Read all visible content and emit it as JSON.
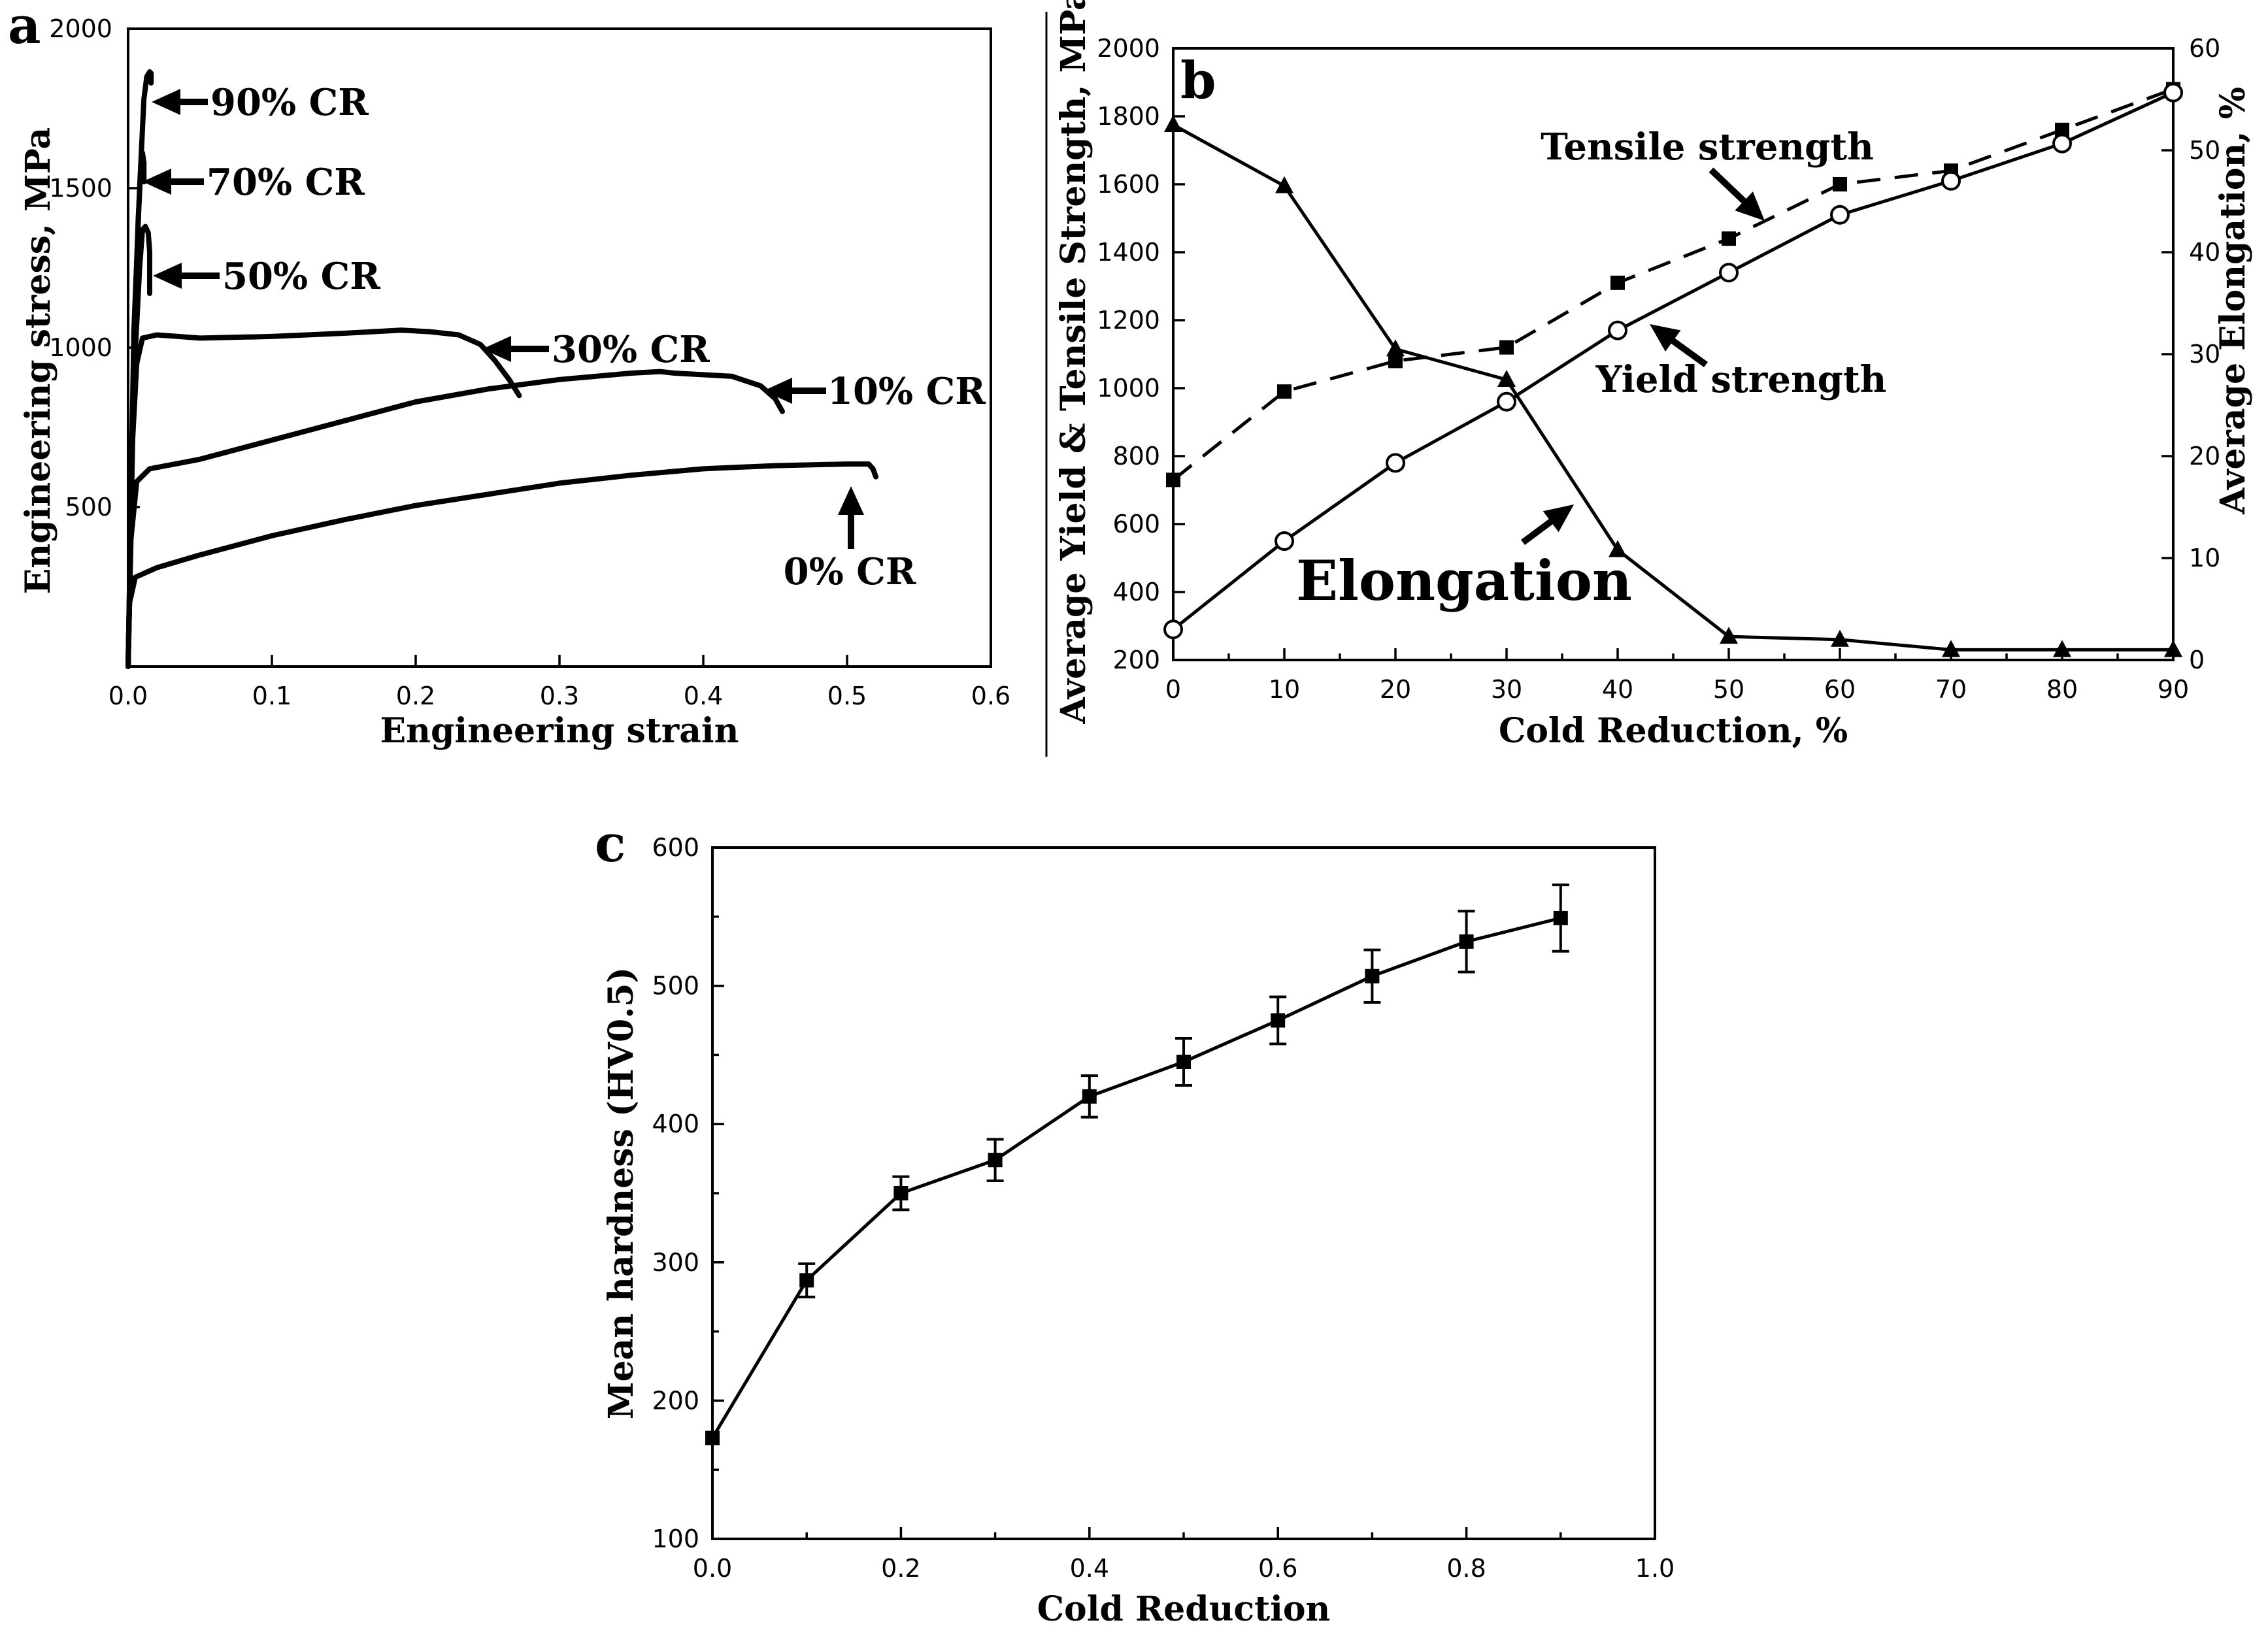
{
  "chart_data": [
    {
      "panel": "a",
      "type": "line",
      "xlabel": "Engineering strain",
      "ylabel": "Engineering stress, MPa",
      "xlim": [
        0,
        0.6
      ],
      "ylim": [
        0,
        2000
      ],
      "xticks": [
        0.0,
        0.1,
        0.2,
        0.3,
        0.4,
        0.5,
        0.6
      ],
      "xtick_labels": [
        "0.0",
        "0.1",
        "0.2",
        "0.3",
        "0.4",
        "0.5",
        "0.6"
      ],
      "yticks": [
        500,
        1000,
        1500,
        2000
      ],
      "ytick_labels": [
        "500",
        "1000",
        "1500",
        "2000"
      ],
      "series": [
        {
          "name": "0% CR",
          "x": [
            0,
            0.001,
            0.005,
            0.02,
            0.05,
            0.1,
            0.15,
            0.2,
            0.25,
            0.3,
            0.35,
            0.4,
            0.45,
            0.5,
            0.515,
            0.518,
            0.52
          ],
          "y": [
            0,
            200,
            280,
            310,
            350,
            410,
            460,
            505,
            540,
            575,
            600,
            620,
            630,
            635,
            635,
            620,
            595
          ]
        },
        {
          "name": "10% CR",
          "x": [
            0,
            0.002,
            0.006,
            0.015,
            0.05,
            0.1,
            0.15,
            0.2,
            0.25,
            0.3,
            0.35,
            0.37,
            0.38,
            0.42,
            0.44,
            0.45,
            0.455
          ],
          "y": [
            0,
            400,
            580,
            620,
            650,
            710,
            770,
            830,
            870,
            900,
            920,
            925,
            920,
            910,
            880,
            840,
            800
          ]
        },
        {
          "name": "30% CR",
          "x": [
            0,
            0.003,
            0.006,
            0.01,
            0.02,
            0.05,
            0.1,
            0.15,
            0.19,
            0.21,
            0.23,
            0.245,
            0.255,
            0.265,
            0.272
          ],
          "y": [
            0,
            700,
            950,
            1030,
            1040,
            1030,
            1035,
            1045,
            1055,
            1050,
            1040,
            1010,
            960,
            900,
            850
          ]
        },
        {
          "name": "50% CR",
          "x": [
            0,
            0.004,
            0.008,
            0.01,
            0.012,
            0.014,
            0.015,
            0.015
          ],
          "y": [
            0,
            900,
            1250,
            1370,
            1380,
            1360,
            1300,
            1170
          ]
        },
        {
          "name": "70% CR",
          "x": [
            0,
            0.004,
            0.007,
            0.009,
            0.01,
            0.011,
            0.011
          ],
          "y": [
            0,
            1000,
            1400,
            1580,
            1610,
            1580,
            1520
          ]
        },
        {
          "name": "90% CR",
          "x": [
            0,
            0.004,
            0.008,
            0.011,
            0.013,
            0.015,
            0.016,
            0.016
          ],
          "y": [
            0,
            1050,
            1500,
            1780,
            1850,
            1865,
            1860,
            1830
          ]
        }
      ],
      "annotations": [
        "90% CR",
        "70% CR",
        "50% CR",
        "30% CR",
        "10% CR",
        "0% CR"
      ]
    },
    {
      "panel": "b",
      "type": "line",
      "xlabel": "Cold Reduction, %",
      "ylabel": "Average Yield & Tensile Strength, MPa",
      "ylabel_right": "Average Elongation, %",
      "xlim": [
        0,
        90
      ],
      "ylim": [
        200,
        2000
      ],
      "ylim_right": [
        0,
        60
      ],
      "xticks": [
        0,
        10,
        20,
        30,
        40,
        50,
        60,
        70,
        80,
        90
      ],
      "xtick_labels": [
        "0",
        "10",
        "20",
        "30",
        "40",
        "50",
        "60",
        "70",
        "80",
        "90"
      ],
      "yticks": [
        200,
        400,
        600,
        800,
        1000,
        1200,
        1400,
        1600,
        1800,
        2000
      ],
      "ytick_labels": [
        "200",
        "400",
        "600",
        "800",
        "1000",
        "1200",
        "1400",
        "1600",
        "1800",
        "2000"
      ],
      "yticks_right": [
        0,
        10,
        20,
        30,
        40,
        50,
        60
      ],
      "ytick_labels_right": [
        "0",
        "10",
        "20",
        "30",
        "40",
        "50",
        "60"
      ],
      "categories": [
        0,
        10,
        20,
        30,
        40,
        50,
        60,
        70,
        80,
        90
      ],
      "series": [
        {
          "name": "Tensile strength",
          "axis": "left",
          "marker": "square",
          "style": "dashed",
          "values": [
            730,
            990,
            1080,
            1120,
            1310,
            1440,
            1600,
            1640,
            1760,
            1880
          ]
        },
        {
          "name": "Yield strength",
          "axis": "left",
          "marker": "circle-open",
          "style": "solid",
          "values": [
            290,
            550,
            780,
            960,
            1170,
            1340,
            1510,
            1610,
            1720,
            1870
          ]
        },
        {
          "name": "Elongation",
          "axis": "right",
          "marker": "triangle",
          "style": "solid",
          "values": [
            52.5,
            46.5,
            30.5,
            27.5,
            10.8,
            2.3,
            2.0,
            1.0,
            1.0,
            1.0
          ]
        }
      ],
      "annotations": [
        "Tensile strength",
        "Yield strength",
        "Elongation"
      ]
    },
    {
      "panel": "c",
      "type": "line",
      "xlabel": "Cold Reduction",
      "ylabel": "Mean hardness (HV0.5)",
      "xlim": [
        0.0,
        1.0
      ],
      "ylim": [
        100,
        600
      ],
      "xticks": [
        0.0,
        0.2,
        0.4,
        0.6,
        0.8,
        1.0
      ],
      "xtick_labels": [
        "0.0",
        "0.2",
        "0.4",
        "0.6",
        "0.8",
        "1.0"
      ],
      "yticks": [
        100,
        200,
        300,
        400,
        500,
        600
      ],
      "ytick_labels": [
        "100",
        "200",
        "300",
        "400",
        "500",
        "600"
      ],
      "series": [
        {
          "name": "Mean hardness",
          "marker": "square",
          "x": [
            0.0,
            0.1,
            0.2,
            0.3,
            0.4,
            0.5,
            0.6,
            0.7,
            0.8,
            0.9
          ],
          "y": [
            173,
            287,
            350,
            374,
            420,
            445,
            475,
            507,
            532,
            549
          ],
          "err": [
            0,
            12,
            12,
            15,
            15,
            17,
            17,
            19,
            22,
            24
          ]
        }
      ]
    }
  ],
  "labels": {
    "panel_a": "a",
    "panel_b": "b",
    "panel_c": "c"
  }
}
